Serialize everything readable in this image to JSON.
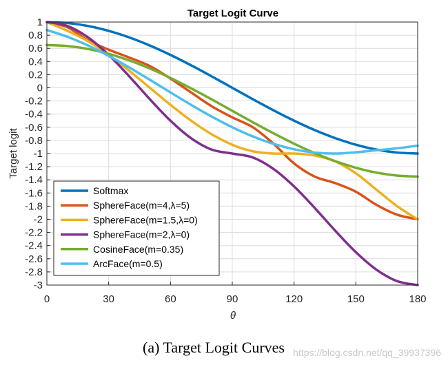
{
  "chart_data": {
    "type": "line",
    "title": "Target Logit Curve",
    "xlabel": "θ",
    "ylabel": "Target logit",
    "xlim": [
      0,
      180
    ],
    "ylim": [
      -3,
      1
    ],
    "x_ticks": [
      0,
      30,
      60,
      90,
      120,
      150,
      180
    ],
    "y_ticks": [
      1,
      0.8,
      0.6,
      0.4,
      0.2,
      0,
      -0.2,
      -0.4,
      -0.6,
      -0.8,
      -1,
      -1.2,
      -1.4,
      -1.6,
      -1.8,
      -2,
      -2.2,
      -2.4,
      -2.6,
      -2.8,
      -3
    ],
    "grid": true,
    "legend_position": "bottom-left",
    "x": [
      0,
      10,
      20,
      30,
      40,
      50,
      60,
      70,
      80,
      90,
      100,
      110,
      120,
      130,
      140,
      150,
      160,
      170,
      180
    ],
    "series": [
      {
        "name": "Softmax",
        "color": "#0072BD",
        "values": [
          1.0,
          0.985,
          0.94,
          0.866,
          0.766,
          0.643,
          0.5,
          0.342,
          0.174,
          0.0,
          -0.174,
          -0.342,
          -0.5,
          -0.643,
          -0.766,
          -0.866,
          -0.94,
          -0.985,
          -1.0
        ]
      },
      {
        "name": "SphereFace(m=4,λ=5)",
        "color": "#D95319",
        "values": [
          1.0,
          0.92,
          0.72,
          0.58,
          0.46,
          0.33,
          0.14,
          -0.07,
          -0.28,
          -0.45,
          -0.6,
          -0.85,
          -1.15,
          -1.35,
          -1.45,
          -1.58,
          -1.78,
          -1.93,
          -2.0
        ]
      },
      {
        "name": "SphereFace(m=1.5,λ=0)",
        "color": "#EDB120",
        "values": [
          1.0,
          0.866,
          0.707,
          0.5,
          0.259,
          0.0,
          -0.259,
          -0.5,
          -0.707,
          -0.866,
          -0.966,
          -1.0,
          -1.0,
          -1.03,
          -1.12,
          -1.3,
          -1.55,
          -1.8,
          -2.0
        ]
      },
      {
        "name": "SphereFace(m=2,λ=0)",
        "color": "#7E2F8E",
        "values": [
          1.0,
          0.94,
          0.766,
          0.5,
          0.174,
          -0.174,
          -0.5,
          -0.766,
          -0.94,
          -1.0,
          -1.06,
          -1.234,
          -1.5,
          -1.826,
          -2.174,
          -2.5,
          -2.766,
          -2.94,
          -3.0
        ]
      },
      {
        "name": "CosineFace(m=0.35)",
        "color": "#77AC30",
        "values": [
          0.65,
          0.635,
          0.59,
          0.516,
          0.416,
          0.293,
          0.15,
          -0.008,
          -0.176,
          -0.35,
          -0.524,
          -0.692,
          -0.85,
          -0.993,
          -1.116,
          -1.216,
          -1.29,
          -1.335,
          -1.35
        ]
      },
      {
        "name": "ArcFace(m=0.5)",
        "color": "#4DBEEE",
        "values": [
          0.878,
          0.775,
          0.643,
          0.485,
          0.309,
          0.122,
          -0.07,
          -0.259,
          -0.438,
          -0.6,
          -0.74,
          -0.853,
          -0.935,
          -0.985,
          -1.0,
          -0.98,
          -0.95,
          -0.92,
          -0.88
        ]
      }
    ]
  },
  "caption": "(a)  Target Logit Curves",
  "watermark": "https://blog.csdn.net/qq_39937396"
}
